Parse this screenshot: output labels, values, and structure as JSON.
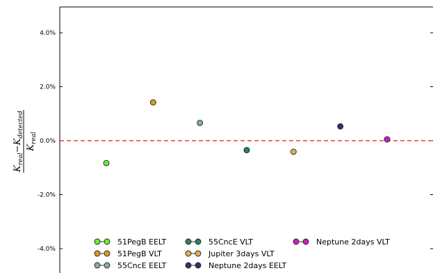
{
  "chart_data": {
    "type": "scatter",
    "title": "",
    "xlabel": "",
    "ylabel": {
      "numerator_main": "K",
      "numerator_sub1": "real",
      "numerator_minus": "−",
      "numerator_main2": "K",
      "numerator_sub2": "detected",
      "denominator_main": "K",
      "denominator_sub": "real"
    },
    "ylim": [
      -0.05,
      0.05
    ],
    "yticks": [
      {
        "value": 0.04,
        "label": "4.0%"
      },
      {
        "value": 0.02,
        "label": "2.0%"
      },
      {
        "value": 0.0,
        "label": "0.0%"
      },
      {
        "value": -0.02,
        "label": "-2.0%"
      },
      {
        "value": -0.04,
        "label": "-4.0%"
      }
    ],
    "xlim": [
      0,
      8
    ],
    "reference_line": {
      "y": 0.0,
      "color": "#e41a1c",
      "style": "dashed"
    },
    "grid": false,
    "legend_position": "bottom",
    "series": [
      {
        "name": "51PegB EELT",
        "color": "#66ee33",
        "x": 1,
        "y": -0.0083
      },
      {
        "name": "51PegB VLT",
        "color": "#d99a1f",
        "x": 2,
        "y": 0.0142
      },
      {
        "name": "55CncE EELT",
        "color": "#88b096",
        "x": 3,
        "y": 0.0066
      },
      {
        "name": "55CncE VLT",
        "color": "#2a8068",
        "x": 4,
        "y": -0.0035
      },
      {
        "name": "Jupiter 3days VLT",
        "color": "#d4b35c",
        "x": 5,
        "y": -0.0041
      },
      {
        "name": "Neptune 2days EELT",
        "color": "#3b2a7a",
        "x": 6,
        "y": 0.0053
      },
      {
        "name": "Neptune 2days VLT",
        "color": "#c81ec8",
        "x": 7,
        "y": 0.0005
      }
    ]
  }
}
